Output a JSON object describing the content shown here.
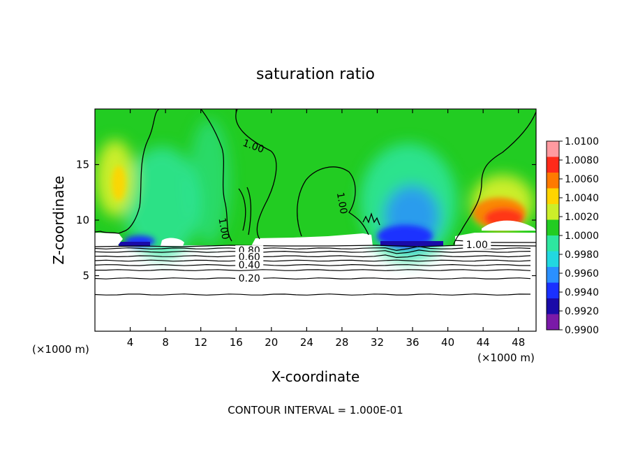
{
  "chart_data": {
    "type": "heatmap",
    "title": "saturation ratio",
    "xlabel": "X-coordinate",
    "ylabel": "Z-coordinate",
    "x_unit_left": "(×1000 m)",
    "x_unit_right": "(×1000 m)",
    "xlim": [
      0,
      50
    ],
    "ylim": [
      0,
      20
    ],
    "x_ticks": [
      4,
      8,
      12,
      16,
      20,
      24,
      28,
      32,
      36,
      40,
      44,
      48
    ],
    "y_ticks": [
      5,
      10,
      15
    ],
    "colorbar_ticks": [
      "1.0100",
      "1.0080",
      "1.0060",
      "1.0040",
      "1.0020",
      "1.0000",
      "0.9980",
      "0.9960",
      "0.9940",
      "0.9920",
      "0.9900"
    ],
    "colorbar_colors": [
      "#ff9aa0",
      "#ff2a1a",
      "#ff7a00",
      "#ffd400",
      "#ccee2a",
      "#22cc22",
      "#2ee6a0",
      "#22d8e0",
      "#2a90ff",
      "#1a30ff",
      "#1a0aa8",
      "#7a1aa8"
    ],
    "colorbar_range": [
      0.99,
      1.01
    ],
    "contour_labels": [
      {
        "text": "1.00",
        "x": 17.9,
        "z": 16.5
      },
      {
        "text": "1.00",
        "x": 27.8,
        "z": 11.5
      },
      {
        "text": "1.00",
        "x": 14.4,
        "z": 9.2
      },
      {
        "text": "1.00",
        "x": 43.3,
        "z": 7.6
      },
      {
        "text": "0.80",
        "x": 17.5,
        "z": 7.1
      },
      {
        "text": "0.60",
        "x": 17.5,
        "z": 6.5
      },
      {
        "text": "0.40",
        "x": 17.5,
        "z": 5.8
      },
      {
        "text": "0.20",
        "x": 17.5,
        "z": 4.6
      }
    ],
    "contour_levels_z": [
      3.3,
      4.75,
      5.5,
      5.95,
      6.35,
      6.75,
      7.15,
      7.45
    ],
    "footer": "CONTOUR INTERVAL = 1.000E-01"
  }
}
